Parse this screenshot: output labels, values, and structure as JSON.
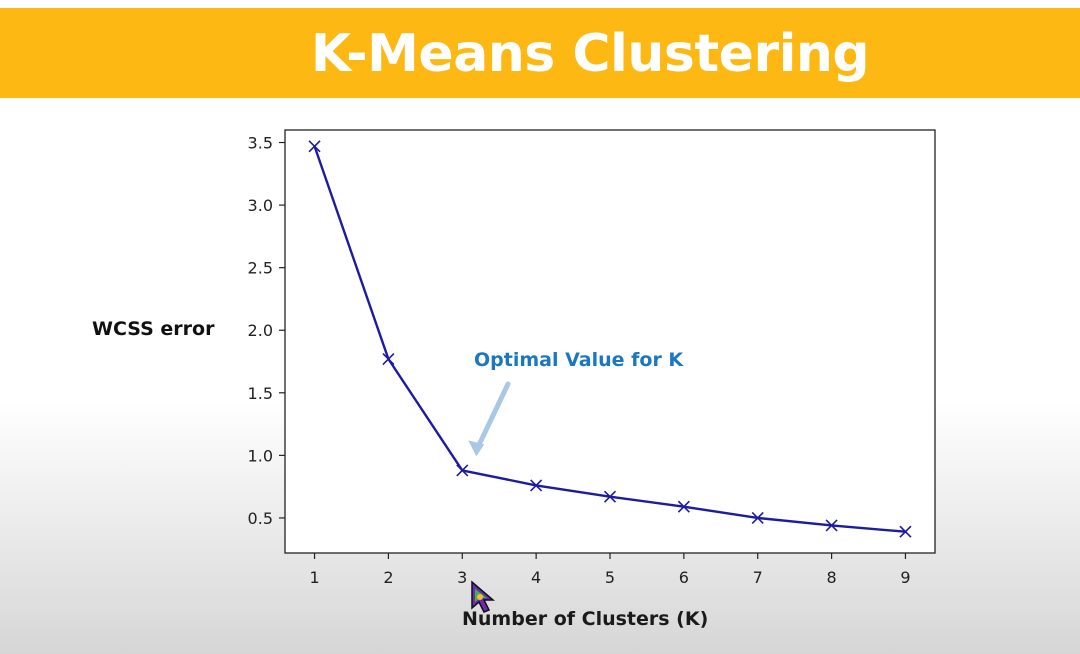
{
  "slide": {
    "title": "K-Means Clustering",
    "banner_color": "#fdb813"
  },
  "chart_data": {
    "type": "line",
    "title": "",
    "xlabel": "Number of Clusters (K)",
    "ylabel": "WCSS error",
    "x": [
      1,
      2,
      3,
      4,
      5,
      6,
      7,
      8,
      9
    ],
    "series": [
      {
        "values": [
          3.47,
          1.77,
          0.88,
          0.76,
          0.67,
          0.59,
          0.5,
          0.44,
          0.39
        ],
        "color": "#1c1ca0",
        "marker": "x"
      }
    ],
    "xticks": [
      "1",
      "2",
      "3",
      "4",
      "5",
      "6",
      "7",
      "8",
      "9"
    ],
    "yticks": [
      "0.5",
      "1.0",
      "1.5",
      "2.0",
      "2.5",
      "3.0",
      "3.5"
    ],
    "xlim": [
      0.6,
      9.4
    ],
    "ylim": [
      0.22,
      3.6
    ],
    "grid": false,
    "annotation": {
      "text": "Optimal Value for K",
      "target_x": 3,
      "color": "#1a78c2",
      "arrow_color": "#a9c8e6"
    }
  }
}
